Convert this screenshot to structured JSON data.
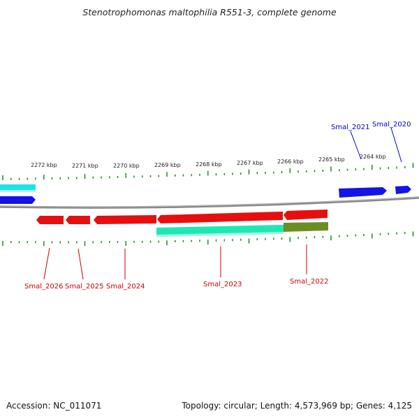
{
  "header": {
    "title": "Stenotrophomonas maltophilia R551-3, complete genome"
  },
  "footer": {
    "accession": "Accession: NC_011071",
    "summary": "Topology: circular; Length: 4,573,969 bp; Genes: 4,125"
  },
  "map": {
    "kbp_labels": [
      "2272 kbp",
      "2271 kbp",
      "2270 kbp",
      "2269 kbp",
      "2268 kbp",
      "2267 kbp",
      "2266 kbp",
      "2265 kbp",
      "2264 kbp"
    ],
    "colors": {
      "forward_gene": "#1414e6",
      "reverse_gene": "#e60f0f",
      "forward_cds": "#1de4e4",
      "reverse_cds": "#1de8b4",
      "olive_cds": "#6b8e23",
      "backbone": "#888888",
      "ticks": "#1a8c1a",
      "forward_label": "#0000cc",
      "reverse_label": "#cc0000"
    },
    "forward_genes": [
      {
        "id": "Smal_2021",
        "label": "Smal_2021"
      },
      {
        "id": "Smal_2020",
        "label": "Smal_2020"
      }
    ],
    "reverse_genes": [
      {
        "id": "Smal_2026",
        "label": "Smal_2026"
      },
      {
        "id": "Smal_2025",
        "label": "Smal_2025"
      },
      {
        "id": "Smal_2024",
        "label": "Smal_2024"
      },
      {
        "id": "Smal_2023",
        "label": "Smal_2023"
      },
      {
        "id": "Smal_2022",
        "label": "Smal_2022"
      }
    ]
  }
}
